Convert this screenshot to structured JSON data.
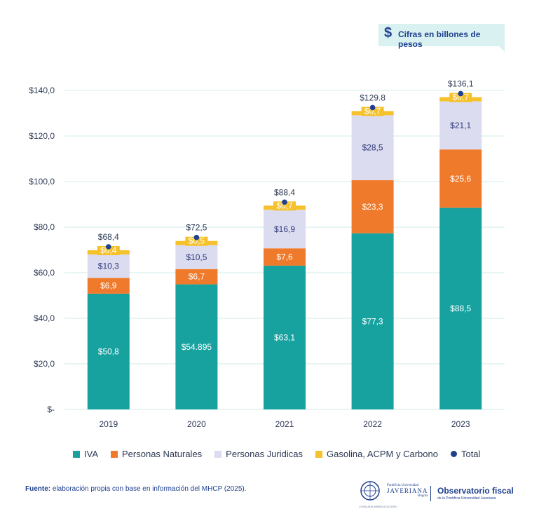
{
  "badge": {
    "text": "Cifras en billones de pesos",
    "icon": "dollar-icon",
    "symbol": "$"
  },
  "colors": {
    "iva": "#17a2a0",
    "naturales": "#f07a2b",
    "juridicas": "#dcdcf0",
    "gasolina": "#f6c12b",
    "total": "#1f3f8f",
    "grid": "#cfeceb",
    "badge_bg": "#d9f1f1"
  },
  "chart_data": {
    "type": "bar",
    "stacked": true,
    "categories": [
      "2019",
      "2020",
      "2021",
      "2022",
      "2023"
    ],
    "ylim": [
      0,
      140
    ],
    "yticks": [
      0,
      20,
      40,
      60,
      80,
      100,
      120,
      140
    ],
    "ytick_labels": [
      "$-",
      "$20,0",
      "$40,0",
      "$60,0",
      "$80,0",
      "$100,0",
      "$120,0",
      "$140,0"
    ],
    "grid": true,
    "legend_position": "bottom",
    "series": [
      {
        "name": "IVA",
        "values": [
          50.8,
          54.895,
          63.1,
          77.3,
          88.5
        ],
        "labels": [
          "$50,8",
          "$54.895",
          "$63,1",
          "$77,3",
          "$88,5"
        ]
      },
      {
        "name": "Personas Naturales",
        "values": [
          6.9,
          6.7,
          7.6,
          23.3,
          25.6
        ],
        "labels": [
          "$6,9",
          "$6,7",
          "$7,6",
          "$23,3",
          "$25,6"
        ]
      },
      {
        "name": "Personas Juridicas",
        "values": [
          10.3,
          10.5,
          16.9,
          28.5,
          21.1
        ],
        "labels": [
          "$10,3",
          "$10,5",
          "$16,9",
          "$28,5",
          "$21,1"
        ]
      },
      {
        "name": "Gasolina, ACPM y Carbono",
        "values": [
          0.4,
          0.5,
          0.7,
          0.7,
          0.7
        ],
        "labels": [
          "$0,4",
          "$0,5",
          "$0,7",
          "$0,7",
          "$0,7"
        ]
      }
    ],
    "total": {
      "name": "Total",
      "values": [
        68.4,
        72.5,
        88.4,
        129.8,
        136.1
      ],
      "labels": [
        "$68,4",
        "$72,5",
        "$88,4",
        "$129.8",
        "$136,1"
      ]
    }
  },
  "legend": [
    "IVA",
    "Personas Naturales",
    "Personas Juridicas",
    "Gasolina, ACPM y Carbono",
    "Total"
  ],
  "source": {
    "label": "Fuente:",
    "text": " elaboración propia con base en información del MHCP (2025)."
  },
  "logos": {
    "university_small": "Pontificia Universidad",
    "university_name": "JAVERIANA",
    "university_city": "Bogotá",
    "university_footer": "| VIGILADA MINEDUCACIÓN |",
    "observatorio_title": "Observatorio fiscal",
    "observatorio_sub": "de la Pontificia Universidad Javeriana"
  }
}
